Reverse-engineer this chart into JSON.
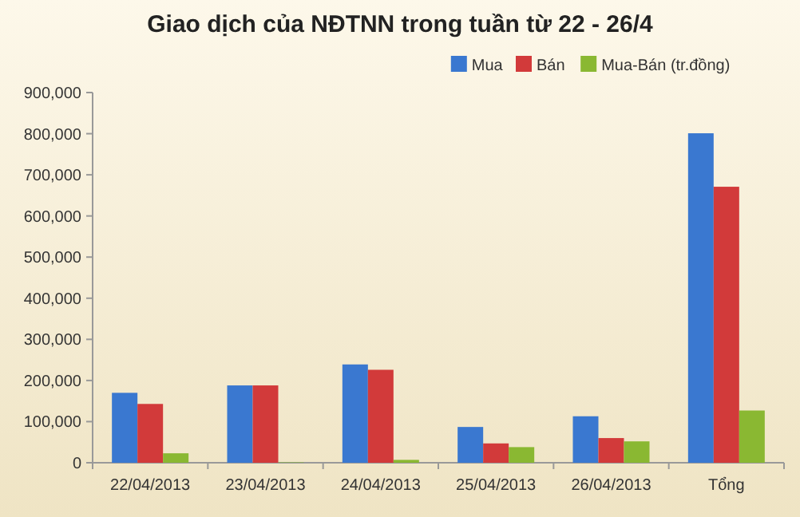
{
  "chart_data": {
    "type": "bar",
    "title": "Giao dịch của NĐTNN trong tuần từ 22 - 26/4",
    "categories": [
      "22/04/2013",
      "23/04/2013",
      "24/04/2013",
      "25/04/2013",
      "26/04/2013",
      "Tổng"
    ],
    "series": [
      {
        "name": "Mua",
        "color": "#3a78d0",
        "values": [
          170000,
          188000,
          239000,
          87000,
          113000,
          801000
        ]
      },
      {
        "name": "Bán",
        "color": "#d23a3a",
        "values": [
          143000,
          188000,
          226000,
          47000,
          60000,
          671000
        ]
      },
      {
        "name": "Mua-Bán (tr.đồng)",
        "color": "#8ab832",
        "values": [
          23000,
          1000,
          7000,
          38000,
          52000,
          127000
        ]
      }
    ],
    "ylim": [
      0,
      900000
    ],
    "yticks": [
      {
        "value": 0,
        "label": "0"
      },
      {
        "value": 100000,
        "label": "100,000"
      },
      {
        "value": 200000,
        "label": "200,000"
      },
      {
        "value": 300000,
        "label": "300,000"
      },
      {
        "value": 400000,
        "label": "400,000"
      },
      {
        "value": 500000,
        "label": "500,000"
      },
      {
        "value": 600000,
        "label": "600,000"
      },
      {
        "value": 700000,
        "label": "700,000"
      },
      {
        "value": 800000,
        "label": "800,000"
      },
      {
        "value": 900000,
        "label": "900,000"
      }
    ],
    "grid": false,
    "legend": "top right"
  }
}
